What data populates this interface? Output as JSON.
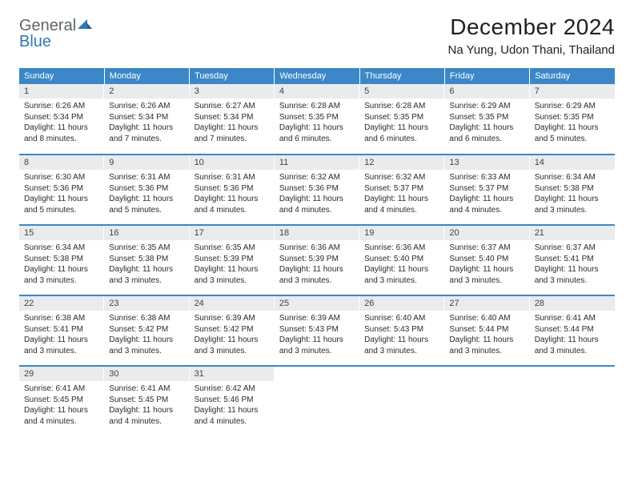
{
  "brand": {
    "part1": "General",
    "part2": "Blue"
  },
  "title": "December 2024",
  "location": "Na Yung, Udon Thani, Thailand",
  "colors": {
    "header_bg": "#3b87c8",
    "header_text": "#ffffff",
    "daynum_bg": "#e9ebed",
    "divider": "#3b87c8",
    "logo_gray": "#606568",
    "logo_blue": "#2f77b8"
  },
  "dayHeaders": [
    "Sunday",
    "Monday",
    "Tuesday",
    "Wednesday",
    "Thursday",
    "Friday",
    "Saturday"
  ],
  "weeks": [
    [
      {
        "n": "1",
        "sr": "6:26 AM",
        "ss": "5:34 PM",
        "dl": "11 hours and 8 minutes."
      },
      {
        "n": "2",
        "sr": "6:26 AM",
        "ss": "5:34 PM",
        "dl": "11 hours and 7 minutes."
      },
      {
        "n": "3",
        "sr": "6:27 AM",
        "ss": "5:34 PM",
        "dl": "11 hours and 7 minutes."
      },
      {
        "n": "4",
        "sr": "6:28 AM",
        "ss": "5:35 PM",
        "dl": "11 hours and 6 minutes."
      },
      {
        "n": "5",
        "sr": "6:28 AM",
        "ss": "5:35 PM",
        "dl": "11 hours and 6 minutes."
      },
      {
        "n": "6",
        "sr": "6:29 AM",
        "ss": "5:35 PM",
        "dl": "11 hours and 6 minutes."
      },
      {
        "n": "7",
        "sr": "6:29 AM",
        "ss": "5:35 PM",
        "dl": "11 hours and 5 minutes."
      }
    ],
    [
      {
        "n": "8",
        "sr": "6:30 AM",
        "ss": "5:36 PM",
        "dl": "11 hours and 5 minutes."
      },
      {
        "n": "9",
        "sr": "6:31 AM",
        "ss": "5:36 PM",
        "dl": "11 hours and 5 minutes."
      },
      {
        "n": "10",
        "sr": "6:31 AM",
        "ss": "5:36 PM",
        "dl": "11 hours and 4 minutes."
      },
      {
        "n": "11",
        "sr": "6:32 AM",
        "ss": "5:36 PM",
        "dl": "11 hours and 4 minutes."
      },
      {
        "n": "12",
        "sr": "6:32 AM",
        "ss": "5:37 PM",
        "dl": "11 hours and 4 minutes."
      },
      {
        "n": "13",
        "sr": "6:33 AM",
        "ss": "5:37 PM",
        "dl": "11 hours and 4 minutes."
      },
      {
        "n": "14",
        "sr": "6:34 AM",
        "ss": "5:38 PM",
        "dl": "11 hours and 3 minutes."
      }
    ],
    [
      {
        "n": "15",
        "sr": "6:34 AM",
        "ss": "5:38 PM",
        "dl": "11 hours and 3 minutes."
      },
      {
        "n": "16",
        "sr": "6:35 AM",
        "ss": "5:38 PM",
        "dl": "11 hours and 3 minutes."
      },
      {
        "n": "17",
        "sr": "6:35 AM",
        "ss": "5:39 PM",
        "dl": "11 hours and 3 minutes."
      },
      {
        "n": "18",
        "sr": "6:36 AM",
        "ss": "5:39 PM",
        "dl": "11 hours and 3 minutes."
      },
      {
        "n": "19",
        "sr": "6:36 AM",
        "ss": "5:40 PM",
        "dl": "11 hours and 3 minutes."
      },
      {
        "n": "20",
        "sr": "6:37 AM",
        "ss": "5:40 PM",
        "dl": "11 hours and 3 minutes."
      },
      {
        "n": "21",
        "sr": "6:37 AM",
        "ss": "5:41 PM",
        "dl": "11 hours and 3 minutes."
      }
    ],
    [
      {
        "n": "22",
        "sr": "6:38 AM",
        "ss": "5:41 PM",
        "dl": "11 hours and 3 minutes."
      },
      {
        "n": "23",
        "sr": "6:38 AM",
        "ss": "5:42 PM",
        "dl": "11 hours and 3 minutes."
      },
      {
        "n": "24",
        "sr": "6:39 AM",
        "ss": "5:42 PM",
        "dl": "11 hours and 3 minutes."
      },
      {
        "n": "25",
        "sr": "6:39 AM",
        "ss": "5:43 PM",
        "dl": "11 hours and 3 minutes."
      },
      {
        "n": "26",
        "sr": "6:40 AM",
        "ss": "5:43 PM",
        "dl": "11 hours and 3 minutes."
      },
      {
        "n": "27",
        "sr": "6:40 AM",
        "ss": "5:44 PM",
        "dl": "11 hours and 3 minutes."
      },
      {
        "n": "28",
        "sr": "6:41 AM",
        "ss": "5:44 PM",
        "dl": "11 hours and 3 minutes."
      }
    ],
    [
      {
        "n": "29",
        "sr": "6:41 AM",
        "ss": "5:45 PM",
        "dl": "11 hours and 4 minutes."
      },
      {
        "n": "30",
        "sr": "6:41 AM",
        "ss": "5:45 PM",
        "dl": "11 hours and 4 minutes."
      },
      {
        "n": "31",
        "sr": "6:42 AM",
        "ss": "5:46 PM",
        "dl": "11 hours and 4 minutes."
      },
      null,
      null,
      null,
      null
    ]
  ],
  "labels": {
    "sunrise": "Sunrise: ",
    "sunset": "Sunset: ",
    "daylight": "Daylight: "
  }
}
